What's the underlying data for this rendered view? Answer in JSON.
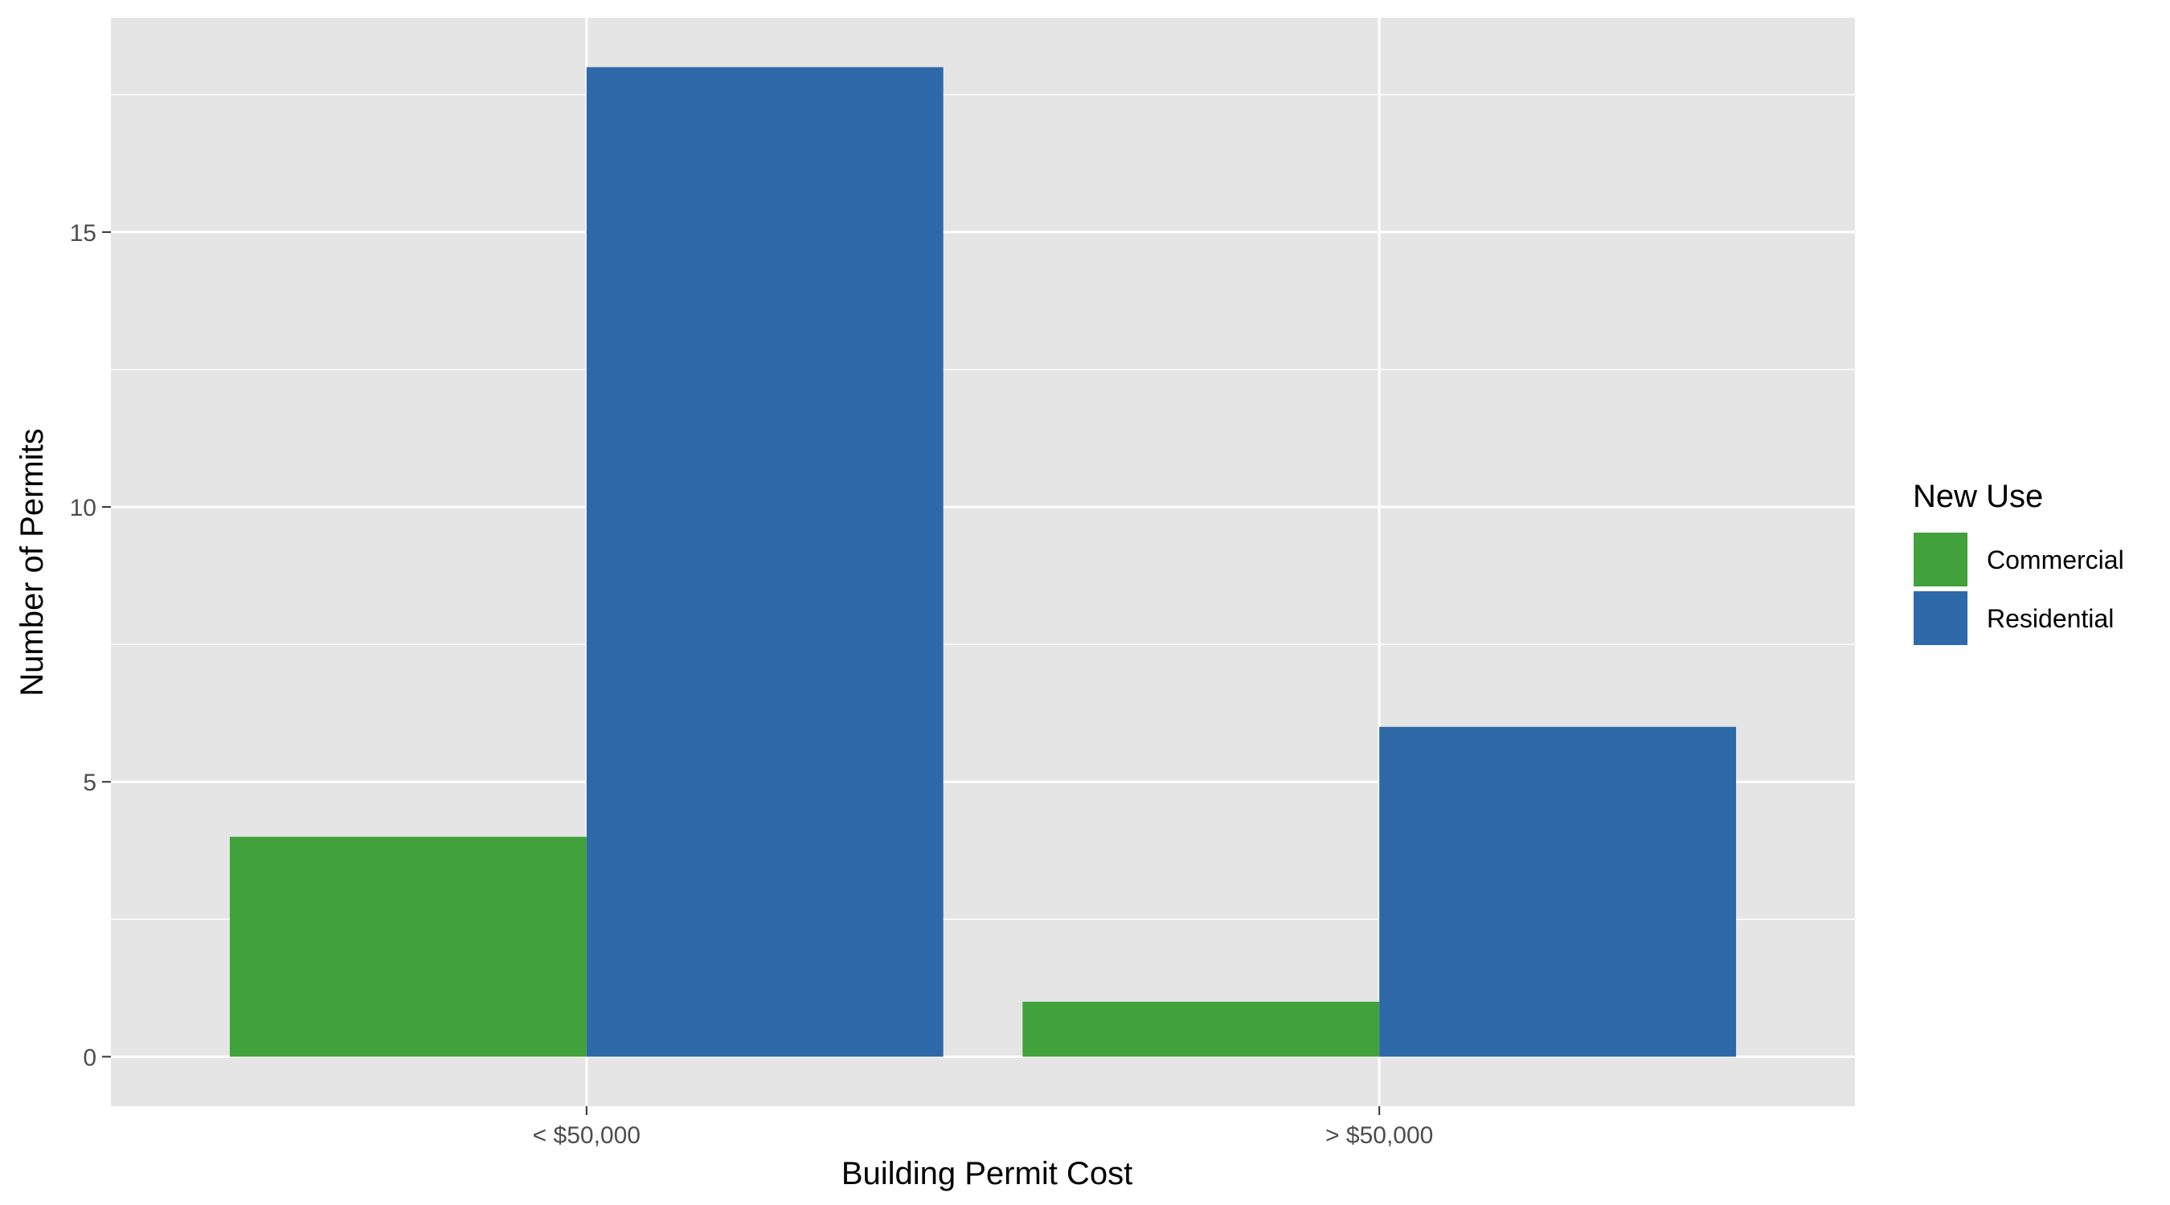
{
  "chart_data": {
    "type": "bar",
    "categories": [
      "< $50,000",
      "> $50,000"
    ],
    "series": [
      {
        "name": "Commercial",
        "values": [
          4,
          1
        ],
        "color": "#41A13A"
      },
      {
        "name": "Residential",
        "values": [
          18,
          6
        ],
        "color": "#2D69A8"
      }
    ],
    "xlabel": "Building Permit Cost",
    "ylabel": "Number of Permits",
    "ylim": [
      -0.9,
      18.9
    ],
    "y_ticks": [
      0,
      5,
      10,
      15
    ],
    "y_tick_labels": [
      "0",
      "5",
      "10",
      "15"
    ],
    "legend": {
      "title": "New Use",
      "placement": "right",
      "items": [
        "Commercial",
        "Residential"
      ]
    },
    "grid": true,
    "panel_background": "#E5E5E5",
    "grid_color": "#FFFFFF"
  }
}
